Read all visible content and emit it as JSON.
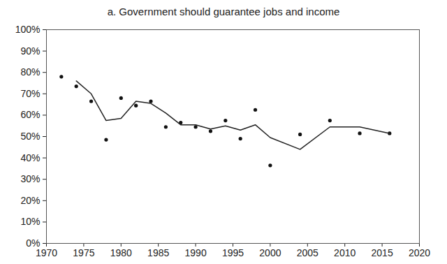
{
  "chart_data": {
    "type": "line",
    "title": "a. Government should guarantee jobs and income",
    "x": [
      1972,
      1974,
      1976,
      1978,
      1980,
      1982,
      1984,
      1986,
      1988,
      1990,
      1992,
      1994,
      1996,
      1998,
      2000,
      2004,
      2008,
      2012,
      2016
    ],
    "series": [
      {
        "type": "scatter",
        "marker": "circle",
        "color": "#111111",
        "values": [
          78,
          73.5,
          66.5,
          48.5,
          68,
          64.5,
          66.5,
          54.5,
          56.5,
          54.5,
          52.5,
          57.5,
          49,
          62.5,
          36.5,
          51,
          57.5,
          51.5,
          51.5
        ]
      },
      {
        "type": "line",
        "line_style": "solid",
        "color": "#222222",
        "values": [
          null,
          76,
          70,
          57.5,
          58.5,
          66.5,
          65.5,
          61,
          55.5,
          55.5,
          53.5,
          55,
          53,
          55.5,
          49.5,
          44,
          54.5,
          54.5,
          51.5
        ]
      }
    ],
    "xlim": [
      1970,
      2020
    ],
    "xticks": [
      1970,
      1975,
      1980,
      1985,
      1990,
      1995,
      2000,
      2005,
      2010,
      2015,
      2020
    ],
    "ylim": [
      0,
      100
    ],
    "yticks": [
      {
        "value": 0,
        "label": "0%"
      },
      {
        "value": 10,
        "label": "10%"
      },
      {
        "value": 20,
        "label": "20%"
      },
      {
        "value": 30,
        "label": "30%"
      },
      {
        "value": 40,
        "label": "40%"
      },
      {
        "value": 50,
        "label": "50%"
      },
      {
        "value": 60,
        "label": "60%"
      },
      {
        "value": 70,
        "label": "70%"
      },
      {
        "value": 80,
        "label": "80%"
      },
      {
        "value": 90,
        "label": "90%"
      },
      {
        "value": 100,
        "label": "100%"
      }
    ],
    "grid": false
  }
}
